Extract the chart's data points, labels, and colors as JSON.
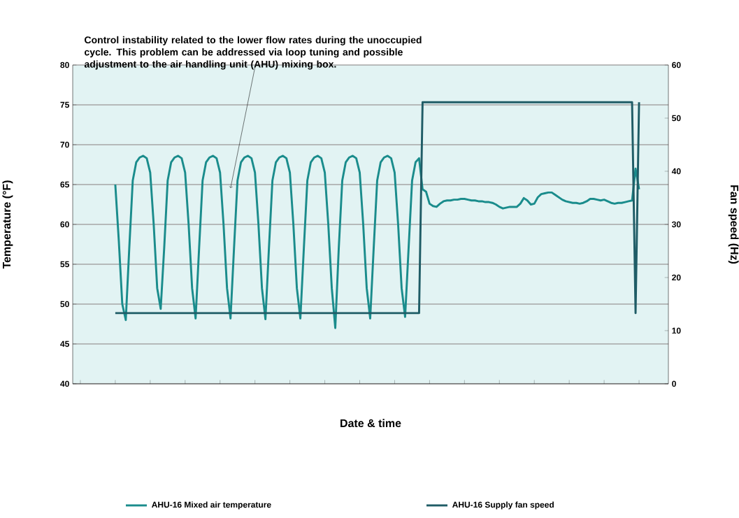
{
  "chart_data": {
    "type": "line",
    "xlabel": "Date & time",
    "ylabel": "Temperature (°F)",
    "y2label": "Fan speed (Hz)",
    "annotations": [
      "Control instability related to the lower flow rates during the unoccupied cycle. This problem can be addressed via loop tuning and possible adjustment to the air handling unit (AHU) mixing box."
    ],
    "categories": [
      null,
      null,
      null,
      null,
      null,
      null,
      null,
      null,
      null,
      null,
      null,
      null,
      null,
      null,
      null,
      null,
      null,
      null,
      null,
      null,
      null,
      null,
      null,
      null,
      null,
      null,
      null,
      null,
      null,
      null,
      null,
      null,
      null,
      null,
      null,
      null,
      null,
      null,
      null,
      null,
      null,
      null,
      null,
      null,
      null,
      null,
      null,
      null,
      null,
      null,
      null,
      null,
      null,
      null,
      null,
      null,
      null,
      null,
      null,
      null,
      null,
      null,
      null,
      null,
      null,
      null,
      null,
      null,
      null,
      null,
      null,
      null,
      null,
      null,
      null,
      null,
      null,
      null,
      null,
      null,
      null,
      null,
      null,
      null,
      null,
      null,
      null,
      null,
      null,
      null,
      null,
      null,
      null,
      null,
      null,
      null,
      null,
      null,
      null,
      null,
      null,
      null,
      null,
      null,
      null,
      null,
      null,
      null,
      null,
      null,
      null,
      null,
      null,
      null,
      null,
      null,
      null,
      null,
      null,
      null,
      null,
      null,
      null,
      null,
      null,
      null,
      null,
      null,
      null,
      null,
      null,
      null,
      null,
      null,
      null,
      null,
      null,
      null,
      null,
      null,
      null,
      null,
      null,
      null,
      null,
      null,
      null,
      null,
      null,
      null,
      null
    ],
    "ylim": [
      40,
      80
    ],
    "yticks": [
      40,
      45,
      50,
      55,
      60,
      65,
      70,
      75,
      80
    ],
    "y2lim": [
      0,
      60
    ],
    "y2ticks": [
      0,
      10,
      20,
      30,
      40,
      50,
      60
    ],
    "grid": "y",
    "legend": "bottom",
    "tick_labels": "y",
    "line_style": "solid",
    "series": [
      {
        "name": "AHU-16 Mixed air temperature",
        "color": "#1a8c8c",
        "values": [
          65.0,
          58,
          50,
          48.0,
          57,
          65.5,
          67.8,
          68.4,
          68.6,
          68.3,
          66.5,
          60,
          52,
          49.4,
          57,
          65.5,
          67.8,
          68.4,
          68.6,
          68.3,
          66.5,
          60,
          52,
          48.2,
          57,
          65.5,
          67.8,
          68.4,
          68.6,
          68.3,
          66.5,
          60,
          52,
          48.2,
          57,
          65.5,
          67.8,
          68.4,
          68.6,
          68.3,
          66.5,
          60,
          52,
          48.1,
          57,
          65.5,
          67.8,
          68.4,
          68.6,
          68.3,
          66.5,
          60,
          52,
          48.2,
          57,
          65.5,
          67.8,
          68.4,
          68.6,
          68.3,
          66.5,
          60,
          52,
          47.0,
          57,
          65.5,
          67.8,
          68.4,
          68.6,
          68.3,
          66.5,
          60,
          52,
          48.2,
          57,
          65.5,
          67.8,
          68.4,
          68.6,
          68.3,
          66.5,
          60,
          52,
          48.4,
          57,
          65.5,
          67.8,
          68.3,
          64.4,
          64.1,
          62.6,
          62.3,
          62.2,
          62.6,
          62.9,
          63.0,
          63.0,
          63.1,
          63.1,
          63.2,
          63.2,
          63.1,
          63.0,
          63.0,
          62.9,
          62.9,
          62.8,
          62.8,
          62.7,
          62.5,
          62.2,
          62.0,
          62.1,
          62.2,
          62.2,
          62.2,
          62.6,
          63.3,
          63.0,
          62.5,
          62.6,
          63.4,
          63.8,
          63.9,
          64.0,
          64.0,
          63.7,
          63.4,
          63.1,
          62.9,
          62.8,
          62.7,
          62.7,
          62.6,
          62.7,
          62.9,
          63.2,
          63.2,
          63.1,
          63.0,
          63.1,
          62.9,
          62.7,
          62.6,
          62.7,
          62.7,
          62.8,
          62.9,
          63.0,
          67.0,
          64.4
        ]
      },
      {
        "name": "AHU-16 Supply fan speed",
        "color": "#1f5c66",
        "axis": "y2",
        "values": [
          13.3,
          13.3,
          13.3,
          13.3,
          13.3,
          13.3,
          13.3,
          13.3,
          13.3,
          13.3,
          13.3,
          13.3,
          13.3,
          13.3,
          13.3,
          13.3,
          13.3,
          13.3,
          13.3,
          13.3,
          13.3,
          13.3,
          13.3,
          13.3,
          13.3,
          13.3,
          13.3,
          13.3,
          13.3,
          13.3,
          13.3,
          13.3,
          13.3,
          13.3,
          13.3,
          13.3,
          13.3,
          13.3,
          13.3,
          13.3,
          13.3,
          13.3,
          13.3,
          13.3,
          13.3,
          13.3,
          13.3,
          13.3,
          13.3,
          13.3,
          13.3,
          13.3,
          13.3,
          13.3,
          13.3,
          13.3,
          13.3,
          13.3,
          13.3,
          13.3,
          13.3,
          13.3,
          13.3,
          13.3,
          13.3,
          13.3,
          13.3,
          13.3,
          13.3,
          13.3,
          13.3,
          13.3,
          13.3,
          13.3,
          13.3,
          13.3,
          13.3,
          13.3,
          13.3,
          13.3,
          13.3,
          13.3,
          13.3,
          13.3,
          13.3,
          13.3,
          13.3,
          13.3,
          53,
          53,
          53,
          53,
          53,
          53,
          53,
          53,
          53,
          53,
          53,
          53,
          53,
          53,
          53,
          53,
          53,
          53,
          53,
          53,
          53,
          53,
          53,
          53,
          53,
          53,
          53,
          53,
          53,
          53,
          53,
          53,
          53,
          53,
          53,
          53,
          53,
          53,
          53,
          53,
          53,
          53,
          53,
          53,
          53,
          53,
          53,
          53,
          53,
          53,
          53,
          53,
          53,
          53,
          53,
          53,
          53,
          53,
          53,
          53,
          53,
          13.3,
          53
        ]
      }
    ]
  }
}
